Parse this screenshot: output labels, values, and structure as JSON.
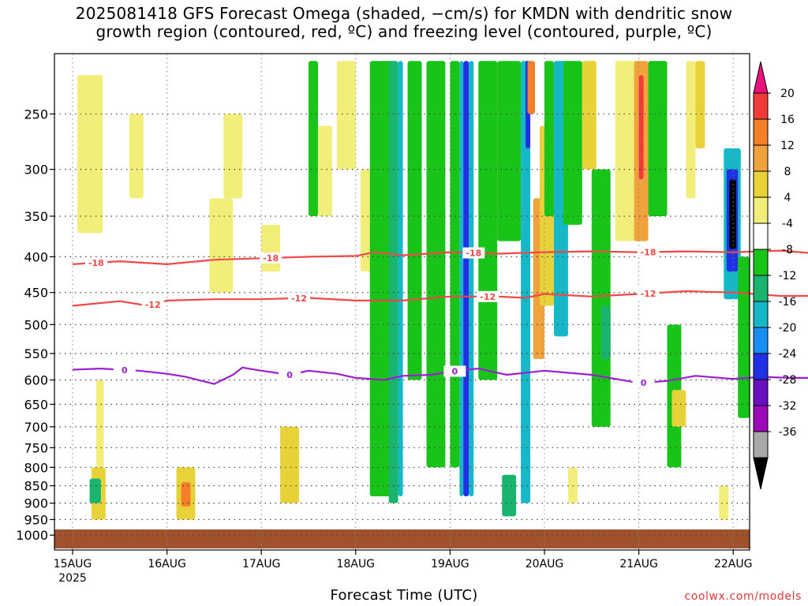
{
  "title": {
    "line1": "2025081418 GFS Forecast Omega (shaded, −cm/s) for KMDN with dendritic snow",
    "line2": "growth region (contoured, red, ºC) and freezing level (contoured, purple, ºC)"
  },
  "xaxis_label": "Forecast Time (UTC)",
  "credit": "coolwx.com/models",
  "colors": {
    "background": "#ffffff",
    "ground": "#a0522d",
    "dgz_contour": "#f04848",
    "freezing_contour": "#9b1fd1",
    "grid": "#555555"
  },
  "chart_data": {
    "type": "heatmap",
    "x_tick_labels": [
      "15AUG",
      "16AUG",
      "17AUG",
      "18AUG",
      "19AUG",
      "20AUG",
      "21AUG",
      "22AUG"
    ],
    "x_year_label": "2025",
    "y_axis": {
      "scale": "log-pressure",
      "unit": "hPa",
      "inverted": true,
      "range": [
        205,
        1050
      ]
    },
    "y_tick_labels": [
      "250",
      "300",
      "350",
      "400",
      "450",
      "500",
      "550",
      "600",
      "650",
      "700",
      "750",
      "800",
      "850",
      "900",
      "950",
      "1000"
    ],
    "y_tick_values": [
      250,
      300,
      350,
      400,
      450,
      500,
      550,
      600,
      650,
      700,
      750,
      800,
      850,
      900,
      950,
      1000
    ],
    "grid": true,
    "colorbar": {
      "placement": "right",
      "labels": [
        "20",
        "16",
        "12",
        "8",
        "4",
        "-4",
        "-8",
        "-12",
        "-16",
        "-20",
        "-24",
        "-28",
        "-32",
        "-36"
      ],
      "bins": [
        {
          "color": "#e8127a"
        },
        {
          "color": "#f23a3a"
        },
        {
          "color": "#f57e29"
        },
        {
          "color": "#f0a23c"
        },
        {
          "color": "#e8d23a"
        },
        {
          "color": "#f2ee7a"
        },
        {
          "color": "#ffffff"
        },
        {
          "color": "#18c418"
        },
        {
          "color": "#19b46e"
        },
        {
          "color": "#16b7c6"
        },
        {
          "color": "#1a8ef0"
        },
        {
          "color": "#2030e6"
        },
        {
          "color": "#6a10c0"
        },
        {
          "color": "#9a0ab8"
        },
        {
          "color": "#a8a8a8"
        },
        {
          "color": "#000000"
        }
      ]
    },
    "contours": {
      "dgz": [
        {
          "label": "-18",
          "x": [
            0,
            0.5,
            1,
            1.5,
            2,
            2.5,
            3,
            3.2,
            3.5,
            4,
            4.5,
            5,
            5.5,
            6,
            6.5,
            7,
            7.5,
            7.9
          ],
          "y": [
            410,
            406,
            410,
            404,
            402,
            400,
            399,
            394,
            398,
            394,
            396,
            394,
            393,
            394,
            393,
            394,
            392,
            396
          ],
          "label_positions": [
            0.25,
            2.1,
            4.25,
            6.1
          ]
        },
        {
          "label": "-12",
          "x": [
            0,
            0.5,
            0.8,
            1,
            1.5,
            2,
            2.5,
            3,
            3.5,
            4,
            4.5,
            4.8,
            5,
            5.5,
            6,
            6.5,
            7,
            7.5,
            7.9
          ],
          "y": [
            470,
            463,
            470,
            462,
            460,
            460,
            458,
            462,
            462,
            456,
            456,
            458,
            452,
            456,
            452,
            448,
            450,
            455,
            455
          ],
          "label_positions": [
            0.85,
            2.4,
            4.4,
            6.1
          ]
        }
      ],
      "freezing": [
        {
          "label": "0",
          "x": [
            0,
            0.3,
            0.7,
            1,
            1.2,
            1.5,
            1.7,
            1.8,
            2,
            2.3,
            2.5,
            2.8,
            3,
            3.3,
            3.5,
            3.8,
            4,
            4.3,
            4.6,
            5,
            5.5,
            6,
            6.3,
            6.6,
            7,
            7.3,
            7.6,
            7.9
          ],
          "y": [
            580,
            578,
            582,
            588,
            594,
            608,
            590,
            576,
            582,
            590,
            582,
            588,
            596,
            600,
            592,
            590,
            584,
            578,
            590,
            582,
            590,
            606,
            602,
            592,
            598,
            594,
            596,
            596
          ],
          "label_positions": [
            0.55,
            2.3,
            4.05,
            6.05
          ]
        }
      ]
    },
    "shaded_cells": [
      {
        "x": [
          0.05,
          0.32
        ],
        "p": [
          220,
          370
        ],
        "bin": 5
      },
      {
        "x": [
          0.2,
          0.35
        ],
        "p": [
          800,
          950
        ],
        "bin": 4
      },
      {
        "x": [
          0.18,
          0.3
        ],
        "p": [
          830,
          900
        ],
        "bin": 8
      },
      {
        "x": [
          0.25,
          0.33
        ],
        "p": [
          600,
          800
        ],
        "bin": 5
      },
      {
        "x": [
          1.1,
          1.3
        ],
        "p": [
          800,
          950
        ],
        "bin": 4
      },
      {
        "x": [
          1.15,
          1.25
        ],
        "p": [
          840,
          910
        ],
        "bin": 2
      },
      {
        "x": [
          0.6,
          0.75
        ],
        "p": [
          250,
          330
        ],
        "bin": 5
      },
      {
        "x": [
          1.45,
          1.7
        ],
        "p": [
          330,
          450
        ],
        "bin": 5
      },
      {
        "x": [
          1.6,
          1.8
        ],
        "p": [
          250,
          330
        ],
        "bin": 5
      },
      {
        "x": [
          2.0,
          2.2
        ],
        "p": [
          360,
          420
        ],
        "bin": 5
      },
      {
        "x": [
          2.2,
          2.4
        ],
        "p": [
          700,
          900
        ],
        "bin": 4
      },
      {
        "x": [
          2.5,
          2.6
        ],
        "p": [
          210,
          350
        ],
        "bin": 7
      },
      {
        "x": [
          2.6,
          2.75
        ],
        "p": [
          260,
          350
        ],
        "bin": 5
      },
      {
        "x": [
          2.8,
          3.0
        ],
        "p": [
          210,
          300
        ],
        "bin": 5
      },
      {
        "x": [
          3.05,
          3.2
        ],
        "p": [
          300,
          420
        ],
        "bin": 5
      },
      {
        "x": [
          3.15,
          3.4
        ],
        "p": [
          210,
          880
        ],
        "bin": 7
      },
      {
        "x": [
          3.35,
          3.45
        ],
        "p": [
          210,
          900
        ],
        "bin": 8
      },
      {
        "x": [
          3.45,
          3.5
        ],
        "p": [
          210,
          880
        ],
        "bin": 9
      },
      {
        "x": [
          3.55,
          3.7
        ],
        "p": [
          210,
          600
        ],
        "bin": 7
      },
      {
        "x": [
          3.75,
          3.95
        ],
        "p": [
          210,
          800
        ],
        "bin": 7
      },
      {
        "x": [
          4.0,
          4.1
        ],
        "p": [
          210,
          800
        ],
        "bin": 7
      },
      {
        "x": [
          4.1,
          4.14
        ],
        "p": [
          210,
          880
        ],
        "bin": 9
      },
      {
        "x": [
          4.14,
          4.2
        ],
        "p": [
          210,
          880
        ],
        "bin": 11
      },
      {
        "x": [
          4.2,
          4.25
        ],
        "p": [
          210,
          880
        ],
        "bin": 9
      },
      {
        "x": [
          4.3,
          4.5
        ],
        "p": [
          210,
          600
        ],
        "bin": 7
      },
      {
        "x": [
          4.5,
          4.75
        ],
        "p": [
          210,
          380
        ],
        "bin": 7
      },
      {
        "x": [
          4.55,
          4.7
        ],
        "p": [
          820,
          940
        ],
        "bin": 8
      },
      {
        "x": [
          4.75,
          4.85
        ],
        "p": [
          210,
          900
        ],
        "bin": 9
      },
      {
        "x": [
          4.8,
          4.85
        ],
        "p": [
          210,
          280
        ],
        "bin": 11
      },
      {
        "x": [
          4.82,
          4.9
        ],
        "p": [
          210,
          250
        ],
        "bin": 2
      },
      {
        "x": [
          4.9,
          5.0
        ],
        "p": [
          400,
          490
        ],
        "bin": 2
      },
      {
        "x": [
          4.88,
          5.0
        ],
        "p": [
          330,
          560
        ],
        "bin": 3
      },
      {
        "x": [
          4.95,
          5.1
        ],
        "p": [
          260,
          470
        ],
        "bin": 4
      },
      {
        "x": [
          5.0,
          5.1
        ],
        "p": [
          210,
          350
        ],
        "bin": 7
      },
      {
        "x": [
          5.1,
          5.25
        ],
        "p": [
          210,
          520
        ],
        "bin": 9
      },
      {
        "x": [
          5.2,
          5.4
        ],
        "p": [
          210,
          360
        ],
        "bin": 7
      },
      {
        "x": [
          5.25,
          5.35
        ],
        "p": [
          800,
          900
        ],
        "bin": 5
      },
      {
        "x": [
          5.4,
          5.55
        ],
        "p": [
          210,
          300
        ],
        "bin": 4
      },
      {
        "x": [
          5.5,
          5.7
        ],
        "p": [
          300,
          700
        ],
        "bin": 7
      },
      {
        "x": [
          5.6,
          5.7
        ],
        "p": [
          470,
          560
        ],
        "bin": 8
      },
      {
        "x": [
          5.75,
          6.0
        ],
        "p": [
          210,
          380
        ],
        "bin": 5
      },
      {
        "x": [
          5.95,
          6.1
        ],
        "p": [
          210,
          380
        ],
        "bin": 3
      },
      {
        "x": [
          6.0,
          6.05
        ],
        "p": [
          220,
          310
        ],
        "bin": 1
      },
      {
        "x": [
          6.1,
          6.3
        ],
        "p": [
          210,
          350
        ],
        "bin": 7
      },
      {
        "x": [
          6.3,
          6.45
        ],
        "p": [
          500,
          800
        ],
        "bin": 7
      },
      {
        "x": [
          6.35,
          6.5
        ],
        "p": [
          620,
          700
        ],
        "bin": 4
      },
      {
        "x": [
          6.5,
          6.6
        ],
        "p": [
          210,
          330
        ],
        "bin": 5
      },
      {
        "x": [
          6.6,
          6.7
        ],
        "p": [
          210,
          280
        ],
        "bin": 4
      },
      {
        "x": [
          6.85,
          6.95
        ],
        "p": [
          850,
          950
        ],
        "bin": 5
      },
      {
        "x": [
          6.9,
          7.08
        ],
        "p": [
          280,
          460
        ],
        "bin": 9
      },
      {
        "x": [
          6.93,
          7.05
        ],
        "p": [
          300,
          420
        ],
        "bin": 11
      },
      {
        "x": [
          6.96,
          7.03
        ],
        "p": [
          310,
          390
        ],
        "bin": 15
      },
      {
        "x": [
          7.05,
          7.2
        ],
        "p": [
          400,
          680
        ],
        "bin": 7
      },
      {
        "x": [
          7.2,
          7.4
        ],
        "p": [
          440,
          600
        ],
        "bin": 7
      },
      {
        "x": [
          7.4,
          7.6
        ],
        "p": [
          440,
          520
        ],
        "bin": 7
      },
      {
        "x": [
          7.45,
          7.65
        ],
        "p": [
          840,
          950
        ],
        "bin": 4
      },
      {
        "x": [
          7.5,
          7.6
        ],
        "p": [
          860,
          940
        ],
        "bin": 3
      }
    ]
  }
}
